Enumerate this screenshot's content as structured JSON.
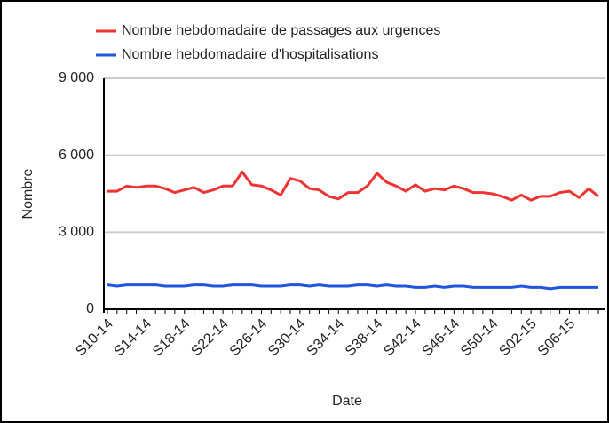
{
  "chart_data": {
    "type": "line",
    "x_label": "Date",
    "y_label": "Nombre",
    "categories": [
      "S10-14",
      null,
      null,
      null,
      "S14-14",
      null,
      null,
      null,
      "S18-14",
      null,
      null,
      null,
      "S22-14",
      null,
      null,
      null,
      "S26-14",
      null,
      null,
      null,
      "S30-14",
      null,
      null,
      null,
      "S34-14",
      null,
      null,
      null,
      "S38-14",
      null,
      null,
      null,
      "S42-14",
      null,
      null,
      null,
      "S46-14",
      null,
      null,
      null,
      "S50-14",
      null,
      null,
      null,
      "S02-15",
      null,
      null,
      null,
      "S06-15",
      null,
      null,
      null
    ],
    "series": [
      {
        "name": "Nombre hebdomadaire de passages aux urgences",
        "color": "#ee3333",
        "values": [
          4600,
          4600,
          4800,
          4750,
          4800,
          4800,
          4700,
          4550,
          4650,
          4750,
          4550,
          4650,
          4800,
          4800,
          5350,
          4850,
          4800,
          4650,
          4450,
          5100,
          5000,
          4700,
          4650,
          4400,
          4300,
          4550,
          4550,
          4800,
          5300,
          4950,
          4800,
          4600,
          4850,
          4600,
          4700,
          4650,
          4800,
          4700,
          4550,
          4550,
          4500,
          4400,
          4250,
          4450,
          4250,
          4400,
          4400,
          4550,
          4600,
          4350,
          4700,
          4400
        ]
      },
      {
        "name": "Nombre hebdomadaire d'hospitalisations",
        "color": "#2255dd",
        "values": [
          950,
          900,
          950,
          950,
          950,
          950,
          900,
          900,
          900,
          950,
          950,
          900,
          900,
          950,
          950,
          950,
          900,
          900,
          900,
          950,
          950,
          900,
          950,
          900,
          900,
          900,
          950,
          950,
          900,
          950,
          900,
          900,
          850,
          850,
          900,
          850,
          900,
          900,
          850,
          850,
          850,
          850,
          850,
          900,
          850,
          850,
          800,
          850,
          850,
          850,
          850,
          850
        ]
      }
    ],
    "ylim": [
      0,
      9000
    ],
    "yticks": [
      0,
      {
        "value": 3000,
        "label": "3 000"
      },
      {
        "value": 6000,
        "label": "6 000"
      },
      {
        "value": 9000,
        "label": "9 000"
      }
    ],
    "grid": true
  }
}
